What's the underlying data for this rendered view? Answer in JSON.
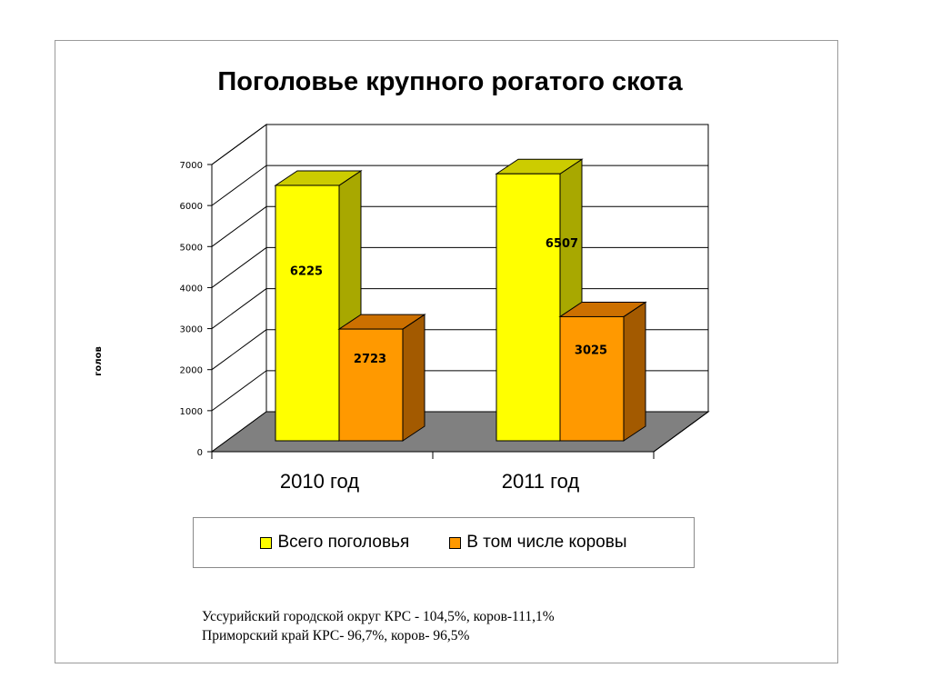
{
  "chart_data": {
    "type": "bar",
    "title": "Поголовье крупного рогатого скота",
    "ylabel": "голов",
    "xlabel": "",
    "categories": [
      "2010 год",
      "2011 год"
    ],
    "series": [
      {
        "name": "Всего поголовья",
        "values": [
          6225,
          6507
        ],
        "color": "#ffff00",
        "side_color": "#a8a800",
        "top_color": "#cccc00"
      },
      {
        "name": "В том числе коровы",
        "values": [
          2723,
          3025
        ],
        "color": "#ff9900",
        "side_color": "#a35a00",
        "top_color": "#cc7000"
      }
    ],
    "ylim": [
      0,
      7000
    ],
    "yticks": [
      "0",
      "1000",
      "2000",
      "3000",
      "4000",
      "5000",
      "6000",
      "7000"
    ],
    "data_labels": true,
    "grid": true,
    "legend": "bottom",
    "floor_color": "#808080"
  },
  "legend": {
    "items": [
      {
        "label": "Всего поголовья",
        "color": "#ffff00"
      },
      {
        "label": "В том числе коровы",
        "color": "#ff9900"
      }
    ]
  },
  "footnote": {
    "line1": "Уссурийский городской округ КРС - 104,5%, коров-111,1%",
    "line2": "Приморский край КРС- 96,7%, коров- 96,5%"
  }
}
